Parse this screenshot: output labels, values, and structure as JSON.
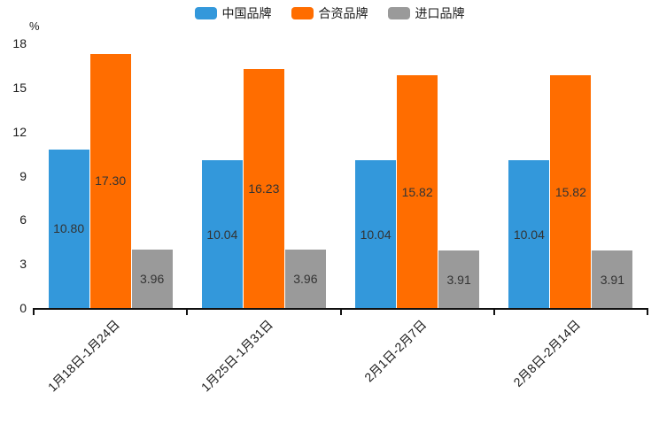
{
  "chart_data": {
    "type": "bar",
    "title": "",
    "unit_label": "%",
    "legend_position": "top",
    "grid": false,
    "categories": [
      "1月18日-1月24日",
      "1月25日-1月31日",
      "2月1日-2月7日",
      "2月8日-2月14日"
    ],
    "series": [
      {
        "name": "中国品牌",
        "color": "#3398DB",
        "values": [
          10.8,
          10.04,
          10.04,
          10.04
        ]
      },
      {
        "name": "合资品牌",
        "color": "#FF6D00",
        "values": [
          17.3,
          16.23,
          15.82,
          15.82
        ]
      },
      {
        "name": "进口品牌",
        "color": "#9A9A9A",
        "values": [
          3.96,
          3.96,
          3.91,
          3.91
        ]
      }
    ],
    "y_axis": {
      "min": 0,
      "max": 18,
      "ticks": [
        18,
        15,
        12,
        9,
        6,
        3,
        0
      ]
    },
    "value_label_decimals": 2,
    "value_label_color": "#333333",
    "axis_line_color": "#111111"
  }
}
